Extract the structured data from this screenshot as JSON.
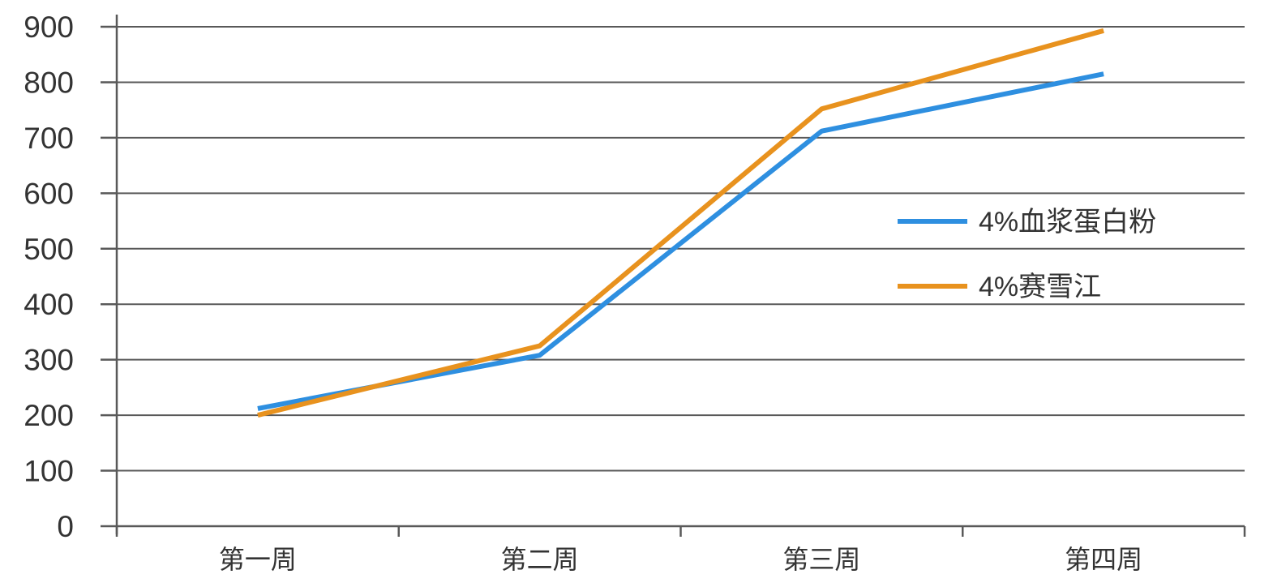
{
  "chart_data": {
    "type": "line",
    "title": "",
    "xlabel": "",
    "ylabel": "",
    "categories": [
      "第一周",
      "第二周",
      "第三周",
      "第四周"
    ],
    "ylim": [
      0,
      900
    ],
    "yticks": [
      0,
      100,
      200,
      300,
      400,
      500,
      600,
      700,
      800,
      900
    ],
    "grid": true,
    "legend_position": "right",
    "series": [
      {
        "name": "4%血浆蛋白粉",
        "color": "#2E8FE0",
        "values": [
          212,
          308,
          712,
          815
        ]
      },
      {
        "name": "4%赛雪江",
        "color": "#E8921E",
        "values": [
          200,
          325,
          752,
          893
        ]
      }
    ]
  }
}
